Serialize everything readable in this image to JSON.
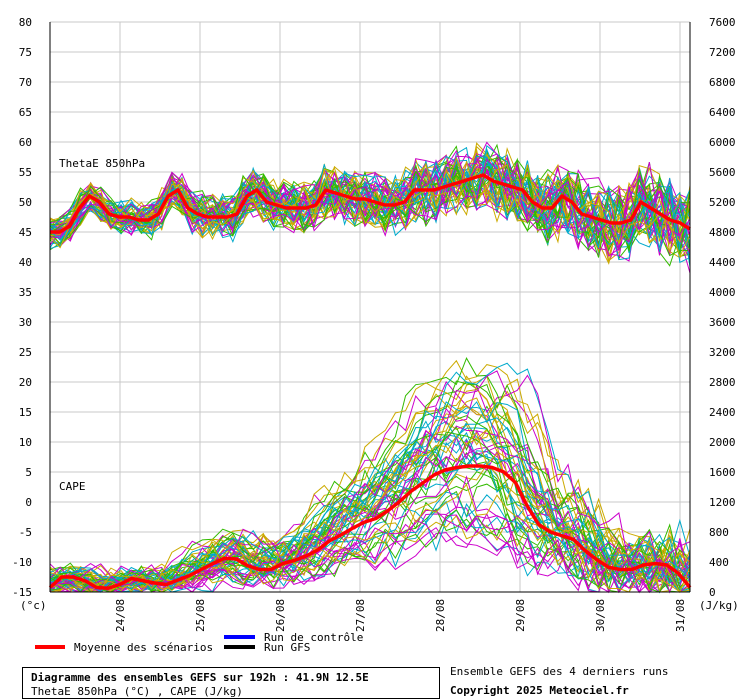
{
  "chart_data": {
    "type": "line",
    "left_axis": {
      "unit": "(°c)",
      "min": -15,
      "max": 80,
      "ticks": [
        80,
        75,
        70,
        65,
        60,
        55,
        50,
        45,
        40,
        35,
        30,
        25,
        20,
        15,
        10,
        5,
        0,
        -5,
        -10,
        -15
      ]
    },
    "right_axis": {
      "unit": "(J/kg)",
      "min": 0,
      "max": 7600,
      "ticks": [
        7600,
        7200,
        6800,
        6400,
        6000,
        5600,
        5200,
        4800,
        4400,
        4000,
        3600,
        3200,
        2800,
        2400,
        2000,
        1600,
        1200,
        800,
        400,
        0
      ]
    },
    "x_axis": {
      "labels": [
        "24/08",
        "25/08",
        "26/08",
        "27/08",
        "28/08",
        "29/08",
        "30/08",
        "31/08"
      ]
    },
    "grid": true,
    "panel_labels": {
      "thetae": "ThetaE 850hPa",
      "cape": "CAPE"
    },
    "legend": {
      "mean": "Moyenne des scénarios",
      "control": "Run de contrôle",
      "gfs": "Run GFS"
    },
    "colors": {
      "mean": "#ff0000",
      "control": "#0000ff",
      "gfs": "#000000",
      "members": [
        "#33bb00",
        "#00aacc",
        "#cc00cc",
        "#ccaa00"
      ]
    },
    "series": [
      {
        "name": "Moyenne des scénarios",
        "variable": "ThetaE 850hPa (°C)",
        "y": [
          45,
          45,
          46,
          49,
          51,
          50,
          48,
          47.5,
          47.5,
          47,
          47,
          48,
          51,
          52,
          49,
          48,
          47.5,
          47.5,
          47.5,
          48,
          51,
          52,
          50,
          49.5,
          49,
          49,
          49,
          49.5,
          52,
          51.5,
          51,
          50.5,
          50.5,
          50,
          49.5,
          49.5,
          50,
          52,
          52,
          52,
          52.5,
          53,
          53.5,
          54,
          54.5,
          53.5,
          53,
          52.5,
          52,
          50,
          49,
          49,
          51,
          50,
          48,
          47.5,
          47,
          46.5,
          46.5,
          47,
          50,
          49,
          48,
          47,
          46.5,
          45.5
        ]
      },
      {
        "name": "Moyenne des scénarios",
        "variable": "CAPE (J/kg)",
        "y": [
          60,
          200,
          200,
          150,
          60,
          50,
          100,
          180,
          150,
          120,
          100,
          160,
          220,
          300,
          380,
          450,
          440,
          350,
          300,
          300,
          380,
          420,
          480,
          560,
          680,
          760,
          850,
          930,
          980,
          1080,
          1200,
          1340,
          1450,
          1560,
          1630,
          1660,
          1680,
          1680,
          1660,
          1600,
          1460,
          1150,
          900,
          800,
          750,
          700,
          550,
          430,
          330,
          300,
          300,
          360,
          380,
          360,
          250,
          60
        ]
      }
    ]
  },
  "footer": {
    "title": "Diagramme des ensembles GEFS sur 192h : 41.9N 12.5E",
    "subtitle": "ThetaE 850hPa (°C) , CAPE (J/kg)",
    "runs_note": "Ensemble GEFS des 4 derniers runs",
    "copyright": "Copyright 2025 Meteociel.fr"
  }
}
